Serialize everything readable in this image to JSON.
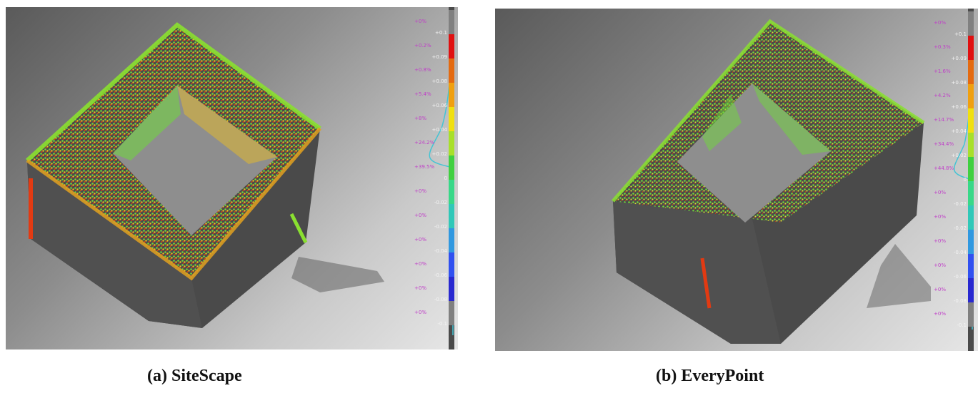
{
  "panels": [
    {
      "id": "a",
      "caption": "(a)  SiteScape",
      "scale_values": [
        "+0.1",
        "+0.09",
        "+0.08",
        "+0.06",
        "+0.04",
        "+0.02",
        "0",
        "-0.02",
        "-0.02",
        "-0.04",
        "-0.06",
        "-0.08",
        "-0.1"
      ],
      "scale_percents": [
        "+0%",
        "+0.2%",
        "+0.8%",
        "+5.4%",
        "+8%",
        "+24.2%",
        "+39.5%",
        "+0%",
        "+0%",
        "+0%",
        "+0%",
        "+0%",
        "+0%"
      ]
    },
    {
      "id": "b",
      "caption": "(b) EveryPoint",
      "scale_values": [
        "+0.1",
        "+0.09",
        "+0.08",
        "+0.06",
        "+0.04",
        "+0.02",
        "0",
        "-0.02",
        "-0.02",
        "-0.04",
        "-0.06",
        "-0.08",
        "-0.1"
      ],
      "scale_percents": [
        "+0%",
        "+0.3%",
        "+1.6%",
        "+4.2%",
        "+14.7%",
        "+34.4%",
        "+44.8%",
        "+0%",
        "+0%",
        "+0%",
        "+0%",
        "+0%",
        "+0%"
      ]
    }
  ],
  "colors": {
    "scale_bands": [
      "#808080",
      "#e01010",
      "#e46a10",
      "#f0a010",
      "#f0e010",
      "#a8e02a",
      "#40d040",
      "#38d888",
      "#30c8b8",
      "#3098e0",
      "#3050f0",
      "#2828d0",
      "#808080"
    ],
    "building_body": "#4a4a4a",
    "courtyard": "#8e8e8e",
    "histogram_line": "#44c4d4"
  }
}
